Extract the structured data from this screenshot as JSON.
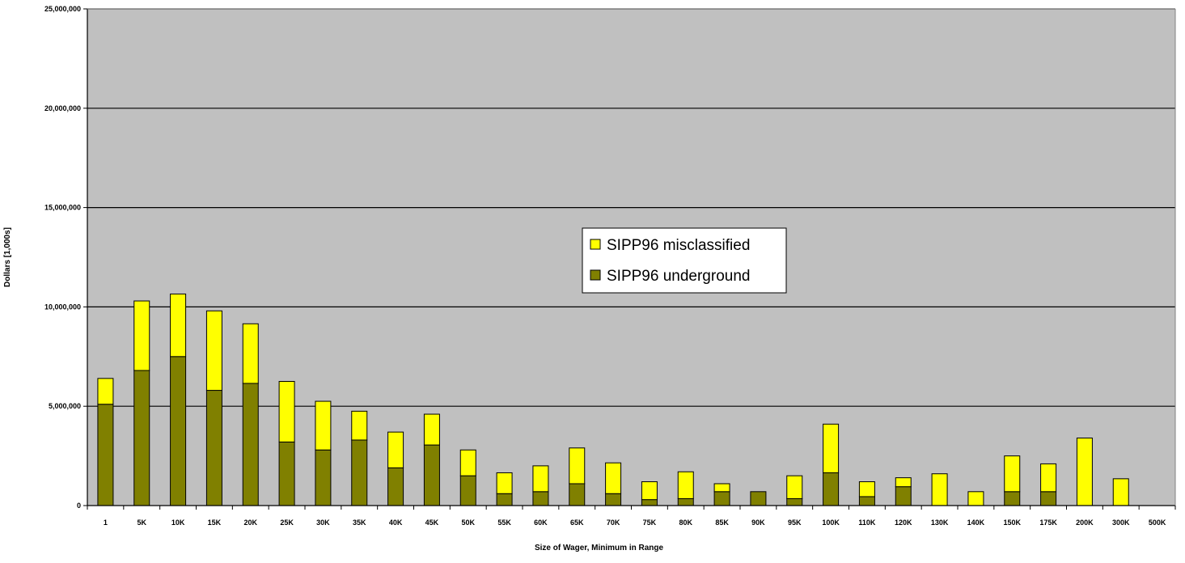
{
  "colors": {
    "plot_background": "#c0c0c0",
    "underground": "#808000",
    "misclassified": "#ffff00",
    "outline": "#000000"
  },
  "chart_data": {
    "type": "bar",
    "stacked": true,
    "title": "",
    "xlabel": "Size of Wager, Minimum in Range",
    "ylabel": "Dollars [1,000s]",
    "ylim": [
      0,
      25000000
    ],
    "yticks": [
      0,
      5000000,
      10000000,
      15000000,
      20000000,
      25000000
    ],
    "ytick_labels": [
      "0",
      "5,000,000",
      "10,000,000",
      "15,000,000",
      "20,000,000",
      "25,000,000"
    ],
    "grid": true,
    "legend_position": "center",
    "categories": [
      "1",
      "5K",
      "10K",
      "15K",
      "20K",
      "25K",
      "30K",
      "35K",
      "40K",
      "45K",
      "50K",
      "55K",
      "60K",
      "65K",
      "70K",
      "75K",
      "80K",
      "85K",
      "90K",
      "95K",
      "100K",
      "110K",
      "120K",
      "130K",
      "140K",
      "150K",
      "175K",
      "200K",
      "300K",
      "500K"
    ],
    "series": [
      {
        "name": "SIPP96 underground",
        "color": "#808000",
        "values": [
          5100000,
          6800000,
          7500000,
          5800000,
          6150000,
          3200000,
          2800000,
          3300000,
          1900000,
          3050000,
          1500000,
          600000,
          700000,
          1100000,
          600000,
          300000,
          350000,
          700000,
          700000,
          350000,
          1650000,
          450000,
          950000,
          0,
          0,
          700000,
          700000,
          0,
          0,
          0
        ]
      },
      {
        "name": "SIPP96 misclassified",
        "color": "#ffff00",
        "values": [
          1300000,
          3500000,
          3150000,
          4000000,
          3000000,
          3050000,
          2450000,
          1450000,
          1800000,
          1550000,
          1300000,
          1050000,
          1300000,
          1800000,
          1550000,
          900000,
          1350000,
          400000,
          0,
          1150000,
          2450000,
          750000,
          450000,
          1600000,
          700000,
          1800000,
          1400000,
          3400000,
          1350000,
          0
        ]
      }
    ],
    "legend_order": [
      "SIPP96 misclassified",
      "SIPP96 underground"
    ]
  }
}
